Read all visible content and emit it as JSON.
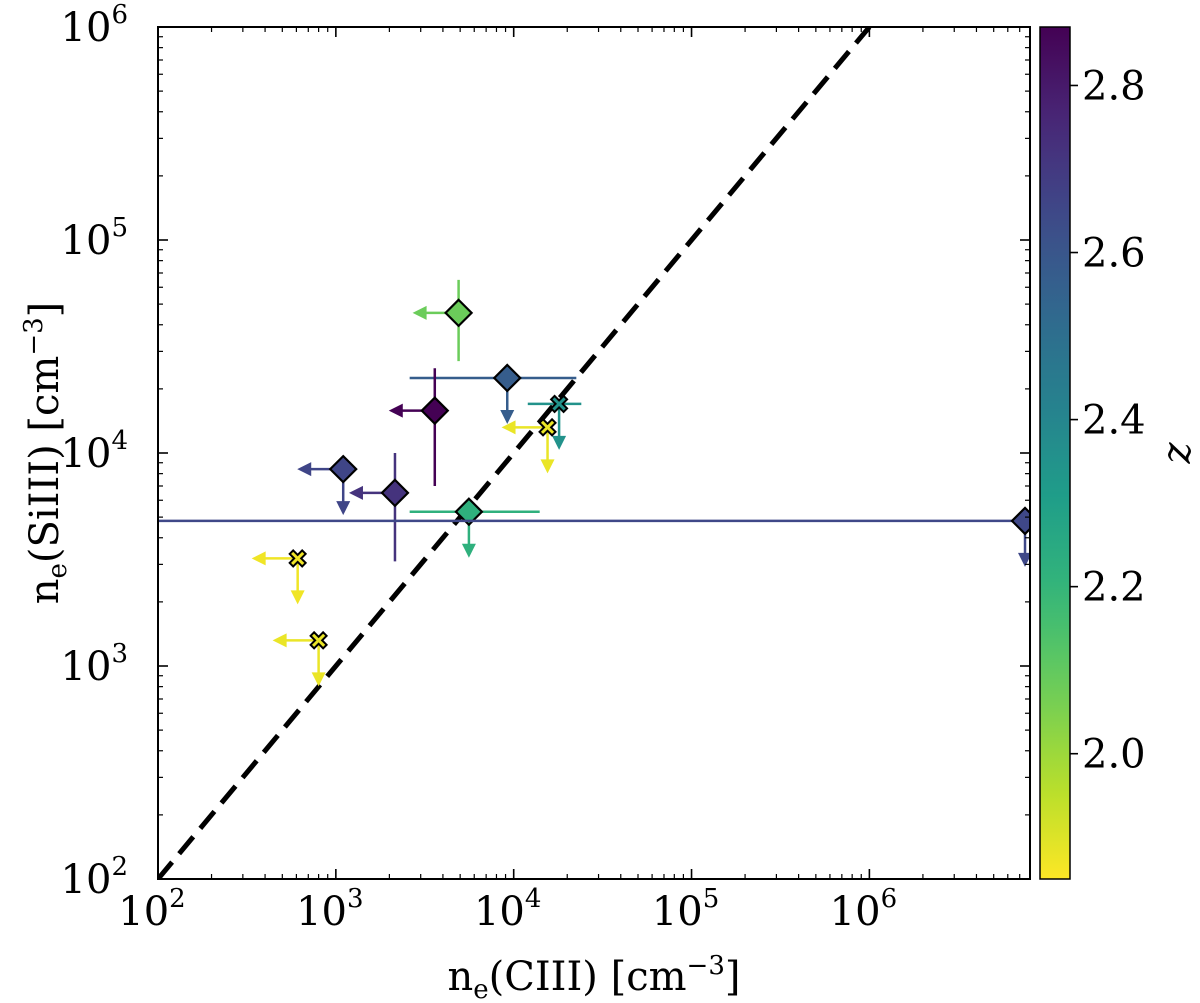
{
  "chart_data": {
    "type": "scatter",
    "title": "",
    "xlabel": {
      "main": "n",
      "sub": "e",
      "species": "(CIII)",
      "unit_open": " [cm",
      "unit_exp": "−3",
      "unit_close": "]"
    },
    "ylabel": {
      "main": "n",
      "sub": "e",
      "species": "(SiIII)",
      "unit_open": " [cm",
      "unit_exp": "−3",
      "unit_close": "]"
    },
    "xscale": "log",
    "yscale": "log",
    "xlim": [
      100,
      8000000
    ],
    "ylim": [
      100,
      1000000
    ],
    "x_ticks": [
      {
        "base": "10",
        "exp": "2",
        "value": 100
      },
      {
        "base": "10",
        "exp": "3",
        "value": 1000
      },
      {
        "base": "10",
        "exp": "4",
        "value": 10000
      },
      {
        "base": "10",
        "exp": "5",
        "value": 100000
      },
      {
        "base": "10",
        "exp": "6",
        "value": 1000000
      }
    ],
    "y_ticks": [
      {
        "base": "10",
        "exp": "2",
        "value": 100
      },
      {
        "base": "10",
        "exp": "3",
        "value": 1000
      },
      {
        "base": "10",
        "exp": "4",
        "value": 10000
      },
      {
        "base": "10",
        "exp": "5",
        "value": 100000
      },
      {
        "base": "10",
        "exp": "6",
        "value": 1000000
      }
    ],
    "reference_line": {
      "type": "one-to-one",
      "style": "dashed",
      "color": "#000000"
    },
    "colorbar": {
      "label": "z",
      "range": [
        1.85,
        2.87
      ],
      "ticks": [
        "2.0",
        "2.2",
        "2.4",
        "2.6",
        "2.8"
      ],
      "tick_values": [
        2.0,
        2.2,
        2.4,
        2.6,
        2.8
      ],
      "colormap": "viridis-reversed"
    },
    "points": [
      {
        "x": 4900,
        "y": 45500,
        "z": 2.08,
        "marker": "diamond",
        "x_upper_limit": true,
        "y_upper_limit": false,
        "yerr": [
          27000,
          65000
        ]
      },
      {
        "x": 9200,
        "y": 22500,
        "z": 2.57,
        "marker": "diamond",
        "x_upper_limit": false,
        "y_upper_limit": true,
        "xerr": [
          2600,
          22500
        ]
      },
      {
        "x": 3600,
        "y": 15800,
        "z": 2.87,
        "marker": "diamond",
        "x_upper_limit": true,
        "y_upper_limit": false,
        "yerr": [
          7000,
          25000
        ]
      },
      {
        "x": 18000,
        "y": 17000,
        "z": 2.35,
        "marker": "x",
        "x_upper_limit": false,
        "y_upper_limit": true,
        "xerr": [
          12000,
          24000
        ]
      },
      {
        "x": 15500,
        "y": 13200,
        "z": 1.88,
        "marker": "x",
        "x_upper_limit": true,
        "y_upper_limit": true
      },
      {
        "x": 1100,
        "y": 8400,
        "z": 2.66,
        "marker": "diamond",
        "x_upper_limit": true,
        "y_upper_limit": true
      },
      {
        "x": 2150,
        "y": 6500,
        "z": 2.72,
        "marker": "diamond",
        "x_upper_limit": true,
        "y_upper_limit": false,
        "yerr": [
          3100,
          10000
        ]
      },
      {
        "x": 5600,
        "y": 5300,
        "z": 2.22,
        "marker": "diamond",
        "x_upper_limit": false,
        "y_upper_limit": true,
        "xerr": [
          2600,
          14000
        ]
      },
      {
        "x": 7500000,
        "y": 4800,
        "z": 2.65,
        "marker": "diamond",
        "x_upper_limit": false,
        "y_upper_limit": true,
        "xerr": [
          100,
          7500000
        ]
      },
      {
        "x": 610,
        "y": 3200,
        "z": 1.87,
        "marker": "x",
        "x_upper_limit": true,
        "y_upper_limit": true
      },
      {
        "x": 800,
        "y": 1320,
        "z": 1.88,
        "marker": "x",
        "x_upper_limit": true,
        "y_upper_limit": true
      }
    ]
  }
}
